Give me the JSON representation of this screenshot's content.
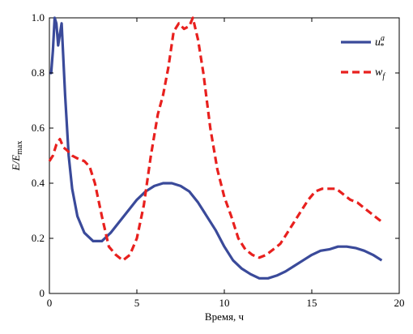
{
  "chart_data": {
    "type": "line",
    "xlabel": "Время, ч",
    "ylabel": "E/E",
    "ylabel_sub": "max",
    "xlim": [
      0,
      20
    ],
    "ylim": [
      0,
      1
    ],
    "x_ticks": [
      0,
      5,
      10,
      15,
      20
    ],
    "y_ticks": [
      0,
      0.2,
      0.4,
      0.6,
      0.8,
      1.0
    ],
    "x_tick_labels": [
      "0",
      "5",
      "10",
      "15",
      "20"
    ],
    "y_tick_labels": [
      "0",
      "0.2",
      "0.4",
      "0.6",
      "0.8",
      "1.0"
    ],
    "grid": false,
    "legend": "top-right",
    "series": [
      {
        "name": "u",
        "name_sup": "a",
        "name_sub": "*",
        "color": "#3a4a9a",
        "style": "solid",
        "points": [
          [
            0.0,
            0.8
          ],
          [
            0.1,
            0.8
          ],
          [
            0.2,
            0.88
          ],
          [
            0.3,
            1.0
          ],
          [
            0.4,
            0.98
          ],
          [
            0.5,
            0.9
          ],
          [
            0.7,
            0.98
          ],
          [
            0.9,
            0.72
          ],
          [
            1.1,
            0.5
          ],
          [
            1.3,
            0.38
          ],
          [
            1.6,
            0.28
          ],
          [
            2.0,
            0.22
          ],
          [
            2.5,
            0.19
          ],
          [
            3.0,
            0.19
          ],
          [
            3.5,
            0.22
          ],
          [
            4.0,
            0.26
          ],
          [
            4.5,
            0.3
          ],
          [
            5.0,
            0.34
          ],
          [
            5.5,
            0.37
          ],
          [
            6.0,
            0.39
          ],
          [
            6.5,
            0.4
          ],
          [
            7.0,
            0.4
          ],
          [
            7.5,
            0.39
          ],
          [
            8.0,
            0.37
          ],
          [
            8.5,
            0.33
          ],
          [
            9.0,
            0.28
          ],
          [
            9.5,
            0.23
          ],
          [
            10.0,
            0.17
          ],
          [
            10.5,
            0.12
          ],
          [
            11.0,
            0.09
          ],
          [
            11.5,
            0.07
          ],
          [
            12.0,
            0.055
          ],
          [
            12.5,
            0.055
          ],
          [
            13.0,
            0.065
          ],
          [
            13.5,
            0.08
          ],
          [
            14.0,
            0.1
          ],
          [
            14.5,
            0.12
          ],
          [
            15.0,
            0.14
          ],
          [
            15.5,
            0.155
          ],
          [
            16.0,
            0.16
          ],
          [
            16.5,
            0.17
          ],
          [
            17.0,
            0.17
          ],
          [
            17.5,
            0.165
          ],
          [
            18.0,
            0.155
          ],
          [
            18.5,
            0.14
          ],
          [
            19.0,
            0.12
          ]
        ]
      },
      {
        "name": "w",
        "name_sub": "f",
        "color": "#e8201e",
        "style": "dashed",
        "points": [
          [
            0.0,
            0.48
          ],
          [
            0.2,
            0.5
          ],
          [
            0.4,
            0.54
          ],
          [
            0.6,
            0.56
          ],
          [
            0.8,
            0.53
          ],
          [
            1.0,
            0.52
          ],
          [
            1.3,
            0.5
          ],
          [
            1.6,
            0.49
          ],
          [
            2.0,
            0.48
          ],
          [
            2.3,
            0.46
          ],
          [
            2.6,
            0.4
          ],
          [
            3.0,
            0.28
          ],
          [
            3.4,
            0.17
          ],
          [
            3.8,
            0.14
          ],
          [
            4.2,
            0.12
          ],
          [
            4.6,
            0.14
          ],
          [
            5.0,
            0.2
          ],
          [
            5.4,
            0.32
          ],
          [
            5.8,
            0.5
          ],
          [
            6.2,
            0.65
          ],
          [
            6.5,
            0.72
          ],
          [
            6.8,
            0.82
          ],
          [
            7.1,
            0.95
          ],
          [
            7.4,
            0.98
          ],
          [
            7.7,
            0.96
          ],
          [
            8.0,
            0.97
          ],
          [
            8.2,
            1.0
          ],
          [
            8.5,
            0.92
          ],
          [
            8.8,
            0.8
          ],
          [
            9.2,
            0.6
          ],
          [
            9.6,
            0.45
          ],
          [
            10.0,
            0.35
          ],
          [
            10.4,
            0.28
          ],
          [
            10.8,
            0.2
          ],
          [
            11.2,
            0.16
          ],
          [
            11.6,
            0.14
          ],
          [
            12.0,
            0.13
          ],
          [
            12.4,
            0.14
          ],
          [
            12.8,
            0.16
          ],
          [
            13.2,
            0.18
          ],
          [
            13.6,
            0.22
          ],
          [
            14.0,
            0.26
          ],
          [
            14.4,
            0.3
          ],
          [
            14.8,
            0.34
          ],
          [
            15.2,
            0.37
          ],
          [
            15.6,
            0.38
          ],
          [
            16.0,
            0.38
          ],
          [
            16.4,
            0.38
          ],
          [
            16.8,
            0.36
          ],
          [
            17.2,
            0.34
          ],
          [
            17.6,
            0.33
          ],
          [
            18.0,
            0.31
          ],
          [
            18.4,
            0.29
          ],
          [
            18.8,
            0.27
          ],
          [
            19.0,
            0.26
          ]
        ]
      }
    ]
  }
}
